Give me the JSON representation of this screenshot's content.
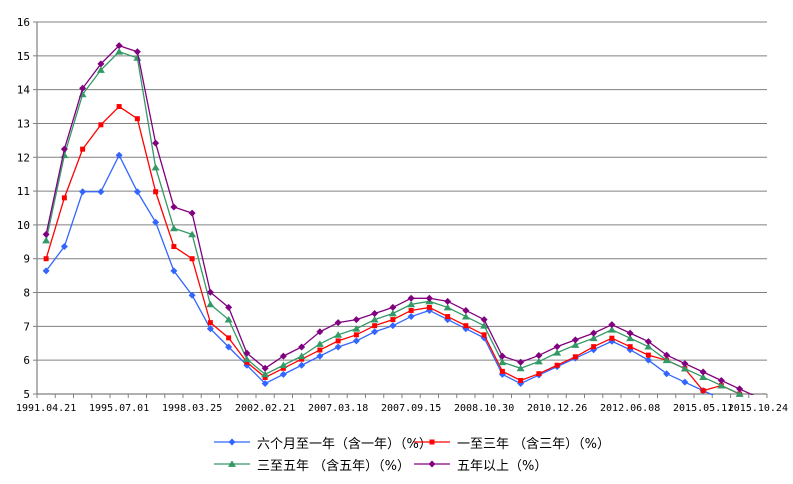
{
  "chart_data": {
    "type": "line",
    "background": "#FFFFFF",
    "text_color": "#000000",
    "axis_color": "#808080",
    "grid": {
      "horizontal": true,
      "vertical": false,
      "color": "#808080"
    },
    "legend_position": "bottom",
    "y_axis": {
      "min": 5,
      "max": 16,
      "step": 1,
      "tick_labels": [
        "5",
        "6",
        "7",
        "8",
        "9",
        "10",
        "11",
        "12",
        "13",
        "14",
        "15",
        "16"
      ]
    },
    "x_axis": {
      "n_points": 40,
      "labeled_ticks": [
        {
          "index": 0,
          "label": "1991.04.21"
        },
        {
          "index": 4,
          "label": "1995.07.01"
        },
        {
          "index": 8,
          "label": "1998.03.25"
        },
        {
          "index": 12,
          "label": "2002.02.21"
        },
        {
          "index": 16,
          "label": "2007.03.18"
        },
        {
          "index": 20,
          "label": "2007.09.15"
        },
        {
          "index": 24,
          "label": "2008.10.30"
        },
        {
          "index": 28,
          "label": "2010.12.26"
        },
        {
          "index": 32,
          "label": "2012.06.08"
        },
        {
          "index": 36,
          "label": "2015.05.11"
        },
        {
          "index": 39,
          "label": "2015.10.24"
        }
      ]
    },
    "series": [
      {
        "id": "six-month-to-one-year",
        "name": "六个月至一年（含一年）（%）",
        "color": "#3366FF",
        "marker": "diamond",
        "values": [
          8.64,
          9.36,
          10.98,
          10.98,
          12.06,
          10.98,
          10.08,
          8.64,
          7.92,
          6.93,
          6.39,
          5.85,
          5.31,
          5.58,
          5.85,
          6.12,
          6.39,
          6.57,
          6.84,
          7.02,
          7.29,
          7.47,
          7.2,
          6.93,
          6.66,
          5.58,
          5.31,
          5.56,
          5.81,
          6.06,
          6.31,
          6.56,
          6.31,
          6.0,
          5.6,
          5.35,
          5.1,
          4.85,
          4.6,
          4.35
        ]
      },
      {
        "id": "one-to-three-year",
        "name": "一至三年 （含三年）（%）",
        "color": "#FF0000",
        "marker": "square",
        "values": [
          9.0,
          10.8,
          12.24,
          12.96,
          13.5,
          13.14,
          10.98,
          9.36,
          9.0,
          7.11,
          6.66,
          5.94,
          5.49,
          5.76,
          6.03,
          6.3,
          6.57,
          6.75,
          7.02,
          7.2,
          7.47,
          7.56,
          7.29,
          7.02,
          6.75,
          5.67,
          5.4,
          5.6,
          5.85,
          6.1,
          6.4,
          6.65,
          6.4,
          6.15,
          6.0,
          5.75,
          5.1,
          5.25,
          5.0,
          4.75
        ]
      },
      {
        "id": "three-to-five-year",
        "name": "三至五年 （含五年）（%）",
        "color": "#339966",
        "marker": "triangle",
        "values": [
          9.54,
          12.06,
          13.86,
          14.58,
          15.12,
          14.94,
          11.7,
          9.9,
          9.72,
          7.65,
          7.2,
          6.03,
          5.58,
          5.85,
          6.12,
          6.48,
          6.75,
          6.93,
          7.2,
          7.38,
          7.65,
          7.74,
          7.56,
          7.29,
          7.02,
          5.94,
          5.76,
          5.96,
          6.22,
          6.45,
          6.65,
          6.9,
          6.65,
          6.4,
          6.0,
          5.75,
          5.5,
          5.25,
          5.0,
          4.75
        ]
      },
      {
        "id": "over-five-year",
        "name": "五年以上（%）",
        "color": "#800080",
        "marker": "diamond",
        "values": [
          9.72,
          12.24,
          14.04,
          14.76,
          15.3,
          15.12,
          12.42,
          10.53,
          10.35,
          8.01,
          7.56,
          6.21,
          5.76,
          6.12,
          6.39,
          6.84,
          7.11,
          7.2,
          7.38,
          7.56,
          7.83,
          7.83,
          7.74,
          7.47,
          7.2,
          6.12,
          5.94,
          6.14,
          6.4,
          6.6,
          6.8,
          7.05,
          6.8,
          6.55,
          6.15,
          5.9,
          5.65,
          5.4,
          5.15,
          4.9
        ]
      }
    ]
  }
}
